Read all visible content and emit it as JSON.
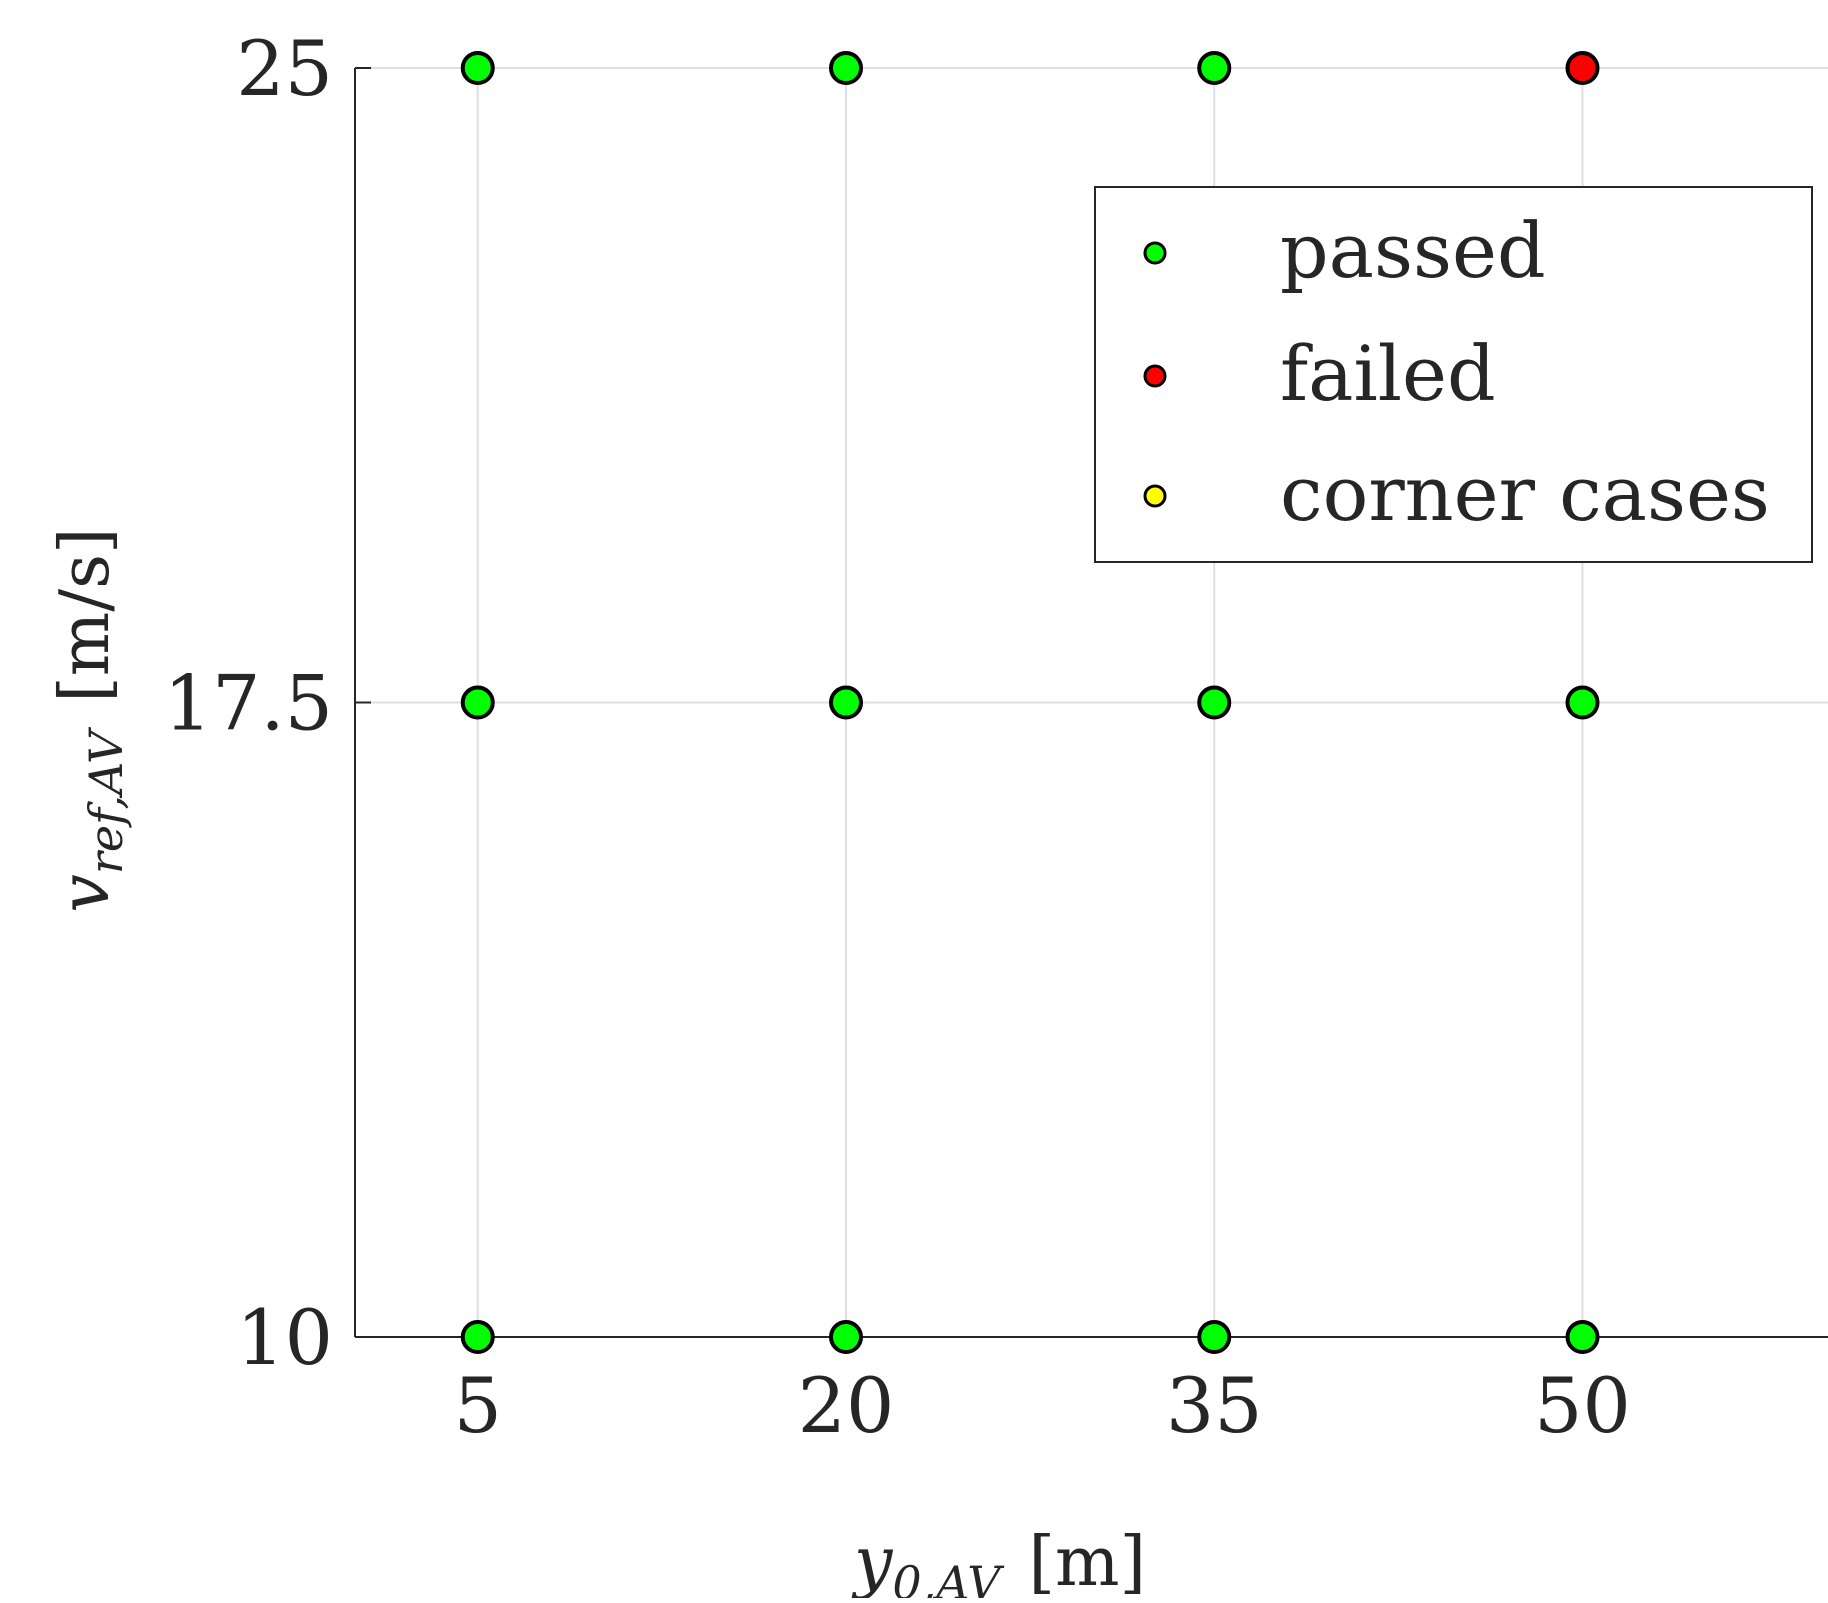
{
  "chart_data": {
    "type": "scatter",
    "xlabel": {
      "var": "y",
      "sub": "0,AV",
      "unit": "[m]"
    },
    "ylabel": {
      "var": "v",
      "sub": "ref,AV",
      "unit": "[m/s]"
    },
    "xticks": [
      "5",
      "20",
      "35",
      "50"
    ],
    "xtick_values": [
      5,
      20,
      35,
      50
    ],
    "yticks": [
      "10",
      "17.5",
      "25"
    ],
    "ytick_values": [
      10,
      17.5,
      25
    ],
    "xlim": [
      0,
      60
    ],
    "ylim": [
      10,
      25
    ],
    "grid": true,
    "legend_position": "top-right",
    "series": [
      {
        "name": "passed",
        "color": "#00ff00",
        "points": [
          [
            5,
            25
          ],
          [
            20,
            25
          ],
          [
            35,
            25
          ],
          [
            5,
            17.5
          ],
          [
            20,
            17.5
          ],
          [
            35,
            17.5
          ],
          [
            50,
            17.5
          ],
          [
            5,
            10
          ],
          [
            20,
            10
          ],
          [
            35,
            10
          ],
          [
            50,
            10
          ]
        ]
      },
      {
        "name": "failed",
        "color": "#ff0000",
        "points": [
          [
            50,
            25
          ]
        ]
      },
      {
        "name": "corner cases",
        "color": "#ffff00",
        "points": []
      }
    ]
  }
}
